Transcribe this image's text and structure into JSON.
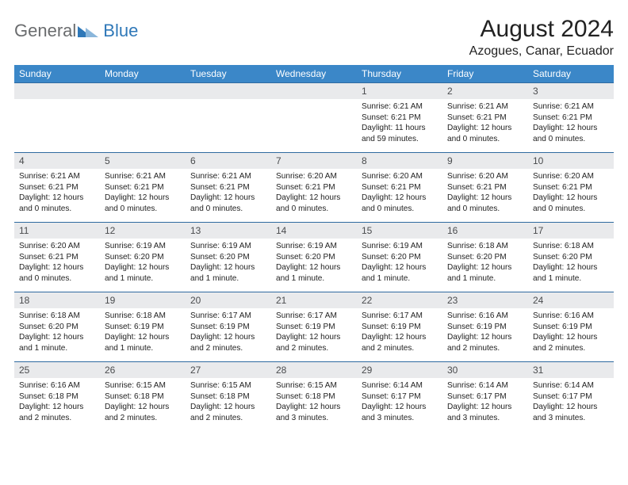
{
  "logo": {
    "general": "General",
    "blue": "Blue",
    "tri_colors": [
      "#2f78b8",
      "#8ab6db"
    ]
  },
  "title": "August 2024",
  "location": "Azogues, Canar, Ecuador",
  "colors": {
    "header_bg": "#3b87c8",
    "header_fg": "#ffffff",
    "daynum_bg": "#e9eaec",
    "daynum_fg": "#4a4c4e",
    "cell_border": "#2f6aa0",
    "text": "#222222",
    "logo_gray": "#6a6c6e",
    "logo_blue": "#2f78b8"
  },
  "typography": {
    "title_fontsize": 30,
    "location_fontsize": 16,
    "weekday_fontsize": 12,
    "daynum_fontsize": 12,
    "body_fontsize": 10.1
  },
  "weekdays": [
    "Sunday",
    "Monday",
    "Tuesday",
    "Wednesday",
    "Thursday",
    "Friday",
    "Saturday"
  ],
  "weeks": [
    [
      null,
      null,
      null,
      null,
      {
        "n": "1",
        "sr": "Sunrise: 6:21 AM",
        "ss": "Sunset: 6:21 PM",
        "dl": "Daylight: 11 hours and 59 minutes."
      },
      {
        "n": "2",
        "sr": "Sunrise: 6:21 AM",
        "ss": "Sunset: 6:21 PM",
        "dl": "Daylight: 12 hours and 0 minutes."
      },
      {
        "n": "3",
        "sr": "Sunrise: 6:21 AM",
        "ss": "Sunset: 6:21 PM",
        "dl": "Daylight: 12 hours and 0 minutes."
      }
    ],
    [
      {
        "n": "4",
        "sr": "Sunrise: 6:21 AM",
        "ss": "Sunset: 6:21 PM",
        "dl": "Daylight: 12 hours and 0 minutes."
      },
      {
        "n": "5",
        "sr": "Sunrise: 6:21 AM",
        "ss": "Sunset: 6:21 PM",
        "dl": "Daylight: 12 hours and 0 minutes."
      },
      {
        "n": "6",
        "sr": "Sunrise: 6:21 AM",
        "ss": "Sunset: 6:21 PM",
        "dl": "Daylight: 12 hours and 0 minutes."
      },
      {
        "n": "7",
        "sr": "Sunrise: 6:20 AM",
        "ss": "Sunset: 6:21 PM",
        "dl": "Daylight: 12 hours and 0 minutes."
      },
      {
        "n": "8",
        "sr": "Sunrise: 6:20 AM",
        "ss": "Sunset: 6:21 PM",
        "dl": "Daylight: 12 hours and 0 minutes."
      },
      {
        "n": "9",
        "sr": "Sunrise: 6:20 AM",
        "ss": "Sunset: 6:21 PM",
        "dl": "Daylight: 12 hours and 0 minutes."
      },
      {
        "n": "10",
        "sr": "Sunrise: 6:20 AM",
        "ss": "Sunset: 6:21 PM",
        "dl": "Daylight: 12 hours and 0 minutes."
      }
    ],
    [
      {
        "n": "11",
        "sr": "Sunrise: 6:20 AM",
        "ss": "Sunset: 6:21 PM",
        "dl": "Daylight: 12 hours and 0 minutes."
      },
      {
        "n": "12",
        "sr": "Sunrise: 6:19 AM",
        "ss": "Sunset: 6:20 PM",
        "dl": "Daylight: 12 hours and 1 minute."
      },
      {
        "n": "13",
        "sr": "Sunrise: 6:19 AM",
        "ss": "Sunset: 6:20 PM",
        "dl": "Daylight: 12 hours and 1 minute."
      },
      {
        "n": "14",
        "sr": "Sunrise: 6:19 AM",
        "ss": "Sunset: 6:20 PM",
        "dl": "Daylight: 12 hours and 1 minute."
      },
      {
        "n": "15",
        "sr": "Sunrise: 6:19 AM",
        "ss": "Sunset: 6:20 PM",
        "dl": "Daylight: 12 hours and 1 minute."
      },
      {
        "n": "16",
        "sr": "Sunrise: 6:18 AM",
        "ss": "Sunset: 6:20 PM",
        "dl": "Daylight: 12 hours and 1 minute."
      },
      {
        "n": "17",
        "sr": "Sunrise: 6:18 AM",
        "ss": "Sunset: 6:20 PM",
        "dl": "Daylight: 12 hours and 1 minute."
      }
    ],
    [
      {
        "n": "18",
        "sr": "Sunrise: 6:18 AM",
        "ss": "Sunset: 6:20 PM",
        "dl": "Daylight: 12 hours and 1 minute."
      },
      {
        "n": "19",
        "sr": "Sunrise: 6:18 AM",
        "ss": "Sunset: 6:19 PM",
        "dl": "Daylight: 12 hours and 1 minute."
      },
      {
        "n": "20",
        "sr": "Sunrise: 6:17 AM",
        "ss": "Sunset: 6:19 PM",
        "dl": "Daylight: 12 hours and 2 minutes."
      },
      {
        "n": "21",
        "sr": "Sunrise: 6:17 AM",
        "ss": "Sunset: 6:19 PM",
        "dl": "Daylight: 12 hours and 2 minutes."
      },
      {
        "n": "22",
        "sr": "Sunrise: 6:17 AM",
        "ss": "Sunset: 6:19 PM",
        "dl": "Daylight: 12 hours and 2 minutes."
      },
      {
        "n": "23",
        "sr": "Sunrise: 6:16 AM",
        "ss": "Sunset: 6:19 PM",
        "dl": "Daylight: 12 hours and 2 minutes."
      },
      {
        "n": "24",
        "sr": "Sunrise: 6:16 AM",
        "ss": "Sunset: 6:19 PM",
        "dl": "Daylight: 12 hours and 2 minutes."
      }
    ],
    [
      {
        "n": "25",
        "sr": "Sunrise: 6:16 AM",
        "ss": "Sunset: 6:18 PM",
        "dl": "Daylight: 12 hours and 2 minutes."
      },
      {
        "n": "26",
        "sr": "Sunrise: 6:15 AM",
        "ss": "Sunset: 6:18 PM",
        "dl": "Daylight: 12 hours and 2 minutes."
      },
      {
        "n": "27",
        "sr": "Sunrise: 6:15 AM",
        "ss": "Sunset: 6:18 PM",
        "dl": "Daylight: 12 hours and 2 minutes."
      },
      {
        "n": "28",
        "sr": "Sunrise: 6:15 AM",
        "ss": "Sunset: 6:18 PM",
        "dl": "Daylight: 12 hours and 3 minutes."
      },
      {
        "n": "29",
        "sr": "Sunrise: 6:14 AM",
        "ss": "Sunset: 6:17 PM",
        "dl": "Daylight: 12 hours and 3 minutes."
      },
      {
        "n": "30",
        "sr": "Sunrise: 6:14 AM",
        "ss": "Sunset: 6:17 PM",
        "dl": "Daylight: 12 hours and 3 minutes."
      },
      {
        "n": "31",
        "sr": "Sunrise: 6:14 AM",
        "ss": "Sunset: 6:17 PM",
        "dl": "Daylight: 12 hours and 3 minutes."
      }
    ]
  ]
}
